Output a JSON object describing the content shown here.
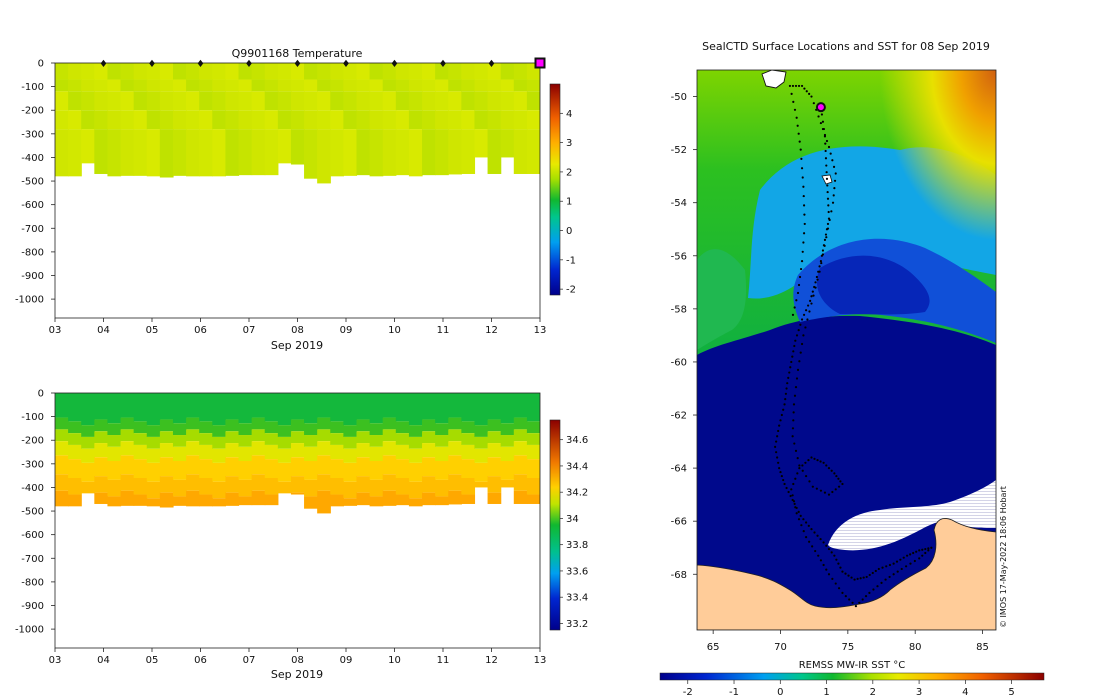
{
  "chart_data": [
    {
      "type": "heatmap",
      "name": "temperature-profile",
      "title": "Q9901168  Temperature",
      "xlabel": "Sep 2019",
      "x_ticks": [
        "03",
        "04",
        "05",
        "06",
        "07",
        "08",
        "09",
        "10",
        "11",
        "12",
        "13"
      ],
      "y_ticks": [
        "0",
        "-100",
        "-200",
        "-300",
        "-400",
        "-500",
        "-600",
        "-700",
        "-800",
        "-900",
        "-1000"
      ],
      "ylim": [
        -1080,
        0
      ],
      "colorbar_ticks": [
        "4",
        "3",
        "2",
        "1",
        "0",
        "-1",
        "-2"
      ],
      "clim": [
        -2.2,
        5
      ],
      "profile_markers_days": [
        4,
        5,
        6,
        7,
        8,
        9,
        10,
        11,
        12
      ],
      "current_marker_day": 13,
      "value_range_note": "values ~1.8–2.6 °C in top ~480 m",
      "profile_depths_m": [
        480,
        480,
        425,
        470,
        480,
        478,
        478,
        480,
        485,
        478,
        480,
        480,
        480,
        478,
        475,
        475,
        475,
        425,
        430,
        490,
        510,
        480,
        478,
        475,
        480,
        478,
        475,
        480,
        475,
        475,
        472,
        470,
        400,
        470,
        400,
        470,
        470
      ]
    },
    {
      "type": "heatmap",
      "name": "salinity-profile",
      "title": "",
      "xlabel": "Sep 2019",
      "x_ticks": [
        "03",
        "04",
        "05",
        "06",
        "07",
        "08",
        "09",
        "10",
        "11",
        "12",
        "13"
      ],
      "y_ticks": [
        "0",
        "-100",
        "-200",
        "-300",
        "-400",
        "-500",
        "-600",
        "-700",
        "-800",
        "-900",
        "-1000"
      ],
      "ylim": [
        -1080,
        0
      ],
      "colorbar_ticks": [
        "34.6",
        "34.4",
        "34.2",
        "34",
        "33.8",
        "33.6",
        "33.4",
        "33.2"
      ],
      "clim": [
        33.15,
        34.75
      ],
      "value_range_note": "~34.0 near surface increasing to ~34.6 at 480 m"
    },
    {
      "type": "map",
      "name": "sst-map",
      "title": "SealCTD Surface Locations and SST for 08 Sep 2019",
      "x_ticks": [
        "65",
        "70",
        "75",
        "80",
        "85"
      ],
      "y_ticks": [
        "-50",
        "-52",
        "-54",
        "-56",
        "-58",
        "-60",
        "-62",
        "-64",
        "-66",
        "-68"
      ],
      "xlim": [
        63.8,
        86.0
      ],
      "ylim": [
        -70.1,
        -49.0
      ],
      "colorbar_label": "REMSS MW-IR SST °C",
      "colorbar_ticks": [
        "-2",
        "-1",
        "0",
        "1",
        "2",
        "3",
        "4",
        "5"
      ],
      "clim": [
        -2.6,
        5.7
      ],
      "current_position": {
        "lon": 73.0,
        "lat": -50.4
      },
      "track": [
        {
          "lon": 73.0,
          "lat": -50.4
        },
        {
          "lon": 73.3,
          "lat": -51.5
        },
        {
          "lon": 73.4,
          "lat": -52.6
        },
        {
          "lon": 73.5,
          "lat": -53.6
        },
        {
          "lon": 73.6,
          "lat": -54.6
        },
        {
          "lon": 73.3,
          "lat": -55.4
        },
        {
          "lon": 73.0,
          "lat": -56.2
        },
        {
          "lon": 72.6,
          "lat": -57.0
        },
        {
          "lon": 72.2,
          "lat": -57.7
        },
        {
          "lon": 71.6,
          "lat": -58.4
        },
        {
          "lon": 71.1,
          "lat": -59.2
        },
        {
          "lon": 70.8,
          "lat": -60.0
        },
        {
          "lon": 70.5,
          "lat": -60.8
        },
        {
          "lon": 70.3,
          "lat": -61.6
        },
        {
          "lon": 69.9,
          "lat": -62.4
        },
        {
          "lon": 69.6,
          "lat": -63.2
        },
        {
          "lon": 69.9,
          "lat": -64.0
        },
        {
          "lon": 70.3,
          "lat": -64.6
        },
        {
          "lon": 70.9,
          "lat": -65.2
        },
        {
          "lon": 71.5,
          "lat": -65.8
        },
        {
          "lon": 72.3,
          "lat": -66.3
        },
        {
          "lon": 73.2,
          "lat": -66.8
        },
        {
          "lon": 74.0,
          "lat": -67.3
        },
        {
          "lon": 74.6,
          "lat": -67.9
        },
        {
          "lon": 75.5,
          "lat": -68.2
        },
        {
          "lon": 76.4,
          "lat": -68.1
        },
        {
          "lon": 77.3,
          "lat": -67.8
        },
        {
          "lon": 78.4,
          "lat": -67.6
        },
        {
          "lon": 79.4,
          "lat": -67.3
        },
        {
          "lon": 80.3,
          "lat": -67.1
        },
        {
          "lon": 81.2,
          "lat": -67.0
        },
        {
          "lon": 80.3,
          "lat": -67.4
        },
        {
          "lon": 79.0,
          "lat": -67.8
        },
        {
          "lon": 77.8,
          "lat": -68.2
        },
        {
          "lon": 76.6,
          "lat": -68.7
        },
        {
          "lon": 75.6,
          "lat": -69.2
        },
        {
          "lon": 74.6,
          "lat": -68.7
        },
        {
          "lon": 73.6,
          "lat": -68.0
        },
        {
          "lon": 72.8,
          "lat": -67.3
        },
        {
          "lon": 71.9,
          "lat": -66.6
        },
        {
          "lon": 71.2,
          "lat": -65.7
        },
        {
          "lon": 70.8,
          "lat": -64.8
        },
        {
          "lon": 71.4,
          "lat": -64.0
        },
        {
          "lon": 72.3,
          "lat": -63.6
        },
        {
          "lon": 73.2,
          "lat": -63.8
        },
        {
          "lon": 74.0,
          "lat": -64.2
        },
        {
          "lon": 74.6,
          "lat": -64.6
        },
        {
          "lon": 73.6,
          "lat": -65.0
        },
        {
          "lon": 72.4,
          "lat": -64.7
        },
        {
          "lon": 71.4,
          "lat": -63.9
        },
        {
          "lon": 70.9,
          "lat": -62.8
        },
        {
          "lon": 71.0,
          "lat": -61.6
        },
        {
          "lon": 71.3,
          "lat": -60.3
        },
        {
          "lon": 71.7,
          "lat": -59.0
        },
        {
          "lon": 72.3,
          "lat": -57.8
        },
        {
          "lon": 72.9,
          "lat": -56.6
        },
        {
          "lon": 73.4,
          "lat": -55.3
        },
        {
          "lon": 73.9,
          "lat": -54.0
        },
        {
          "lon": 74.1,
          "lat": -52.9
        },
        {
          "lon": 73.6,
          "lat": -51.9
        },
        {
          "lon": 73.0,
          "lat": -51.0
        },
        {
          "lon": 72.3,
          "lat": -50.0
        },
        {
          "lon": 71.6,
          "lat": -49.6
        },
        {
          "lon": 70.7,
          "lat": -49.6
        },
        {
          "lon": 71.2,
          "lat": -50.8
        },
        {
          "lon": 71.5,
          "lat": -52.0
        },
        {
          "lon": 71.7,
          "lat": -53.4
        },
        {
          "lon": 71.8,
          "lat": -54.8
        },
        {
          "lon": 71.6,
          "lat": -56.2
        },
        {
          "lon": 71.3,
          "lat": -57.4
        },
        {
          "lon": 70.8,
          "lat": -58.5
        }
      ]
    }
  ],
  "credit": "© IMOS 17-May-2022 18:06 Hobart"
}
